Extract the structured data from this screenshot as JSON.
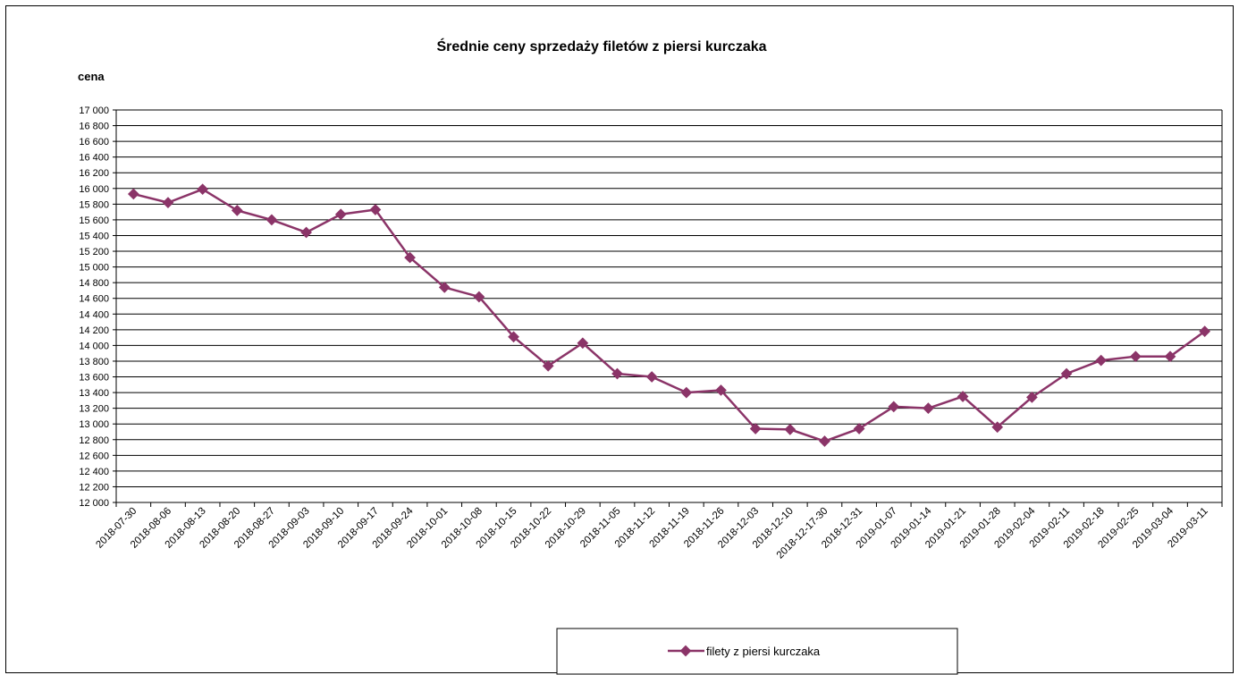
{
  "chart_data": {
    "type": "line",
    "title": "Średnie ceny sprzedaży filetów z piersi kurczaka",
    "ylabel": "cena",
    "xlabel": "",
    "ylim": [
      12000,
      17000
    ],
    "ytick_step": 200,
    "grid": true,
    "legend_position": "bottom",
    "line_color": "#8B3468",
    "categories": [
      "2018-07-30",
      "2018-08-06",
      "2018-08-13",
      "2018-08-20",
      "2018-08-27",
      "2018-09-03",
      "2018-09-10",
      "2018-09-17",
      "2018-09-24",
      "2018-10-01",
      "2018-10-08",
      "2018-10-15",
      "2018-10-22",
      "2018-10-29",
      "2018-11-05",
      "2018-11-12",
      "2018-11-19",
      "2018-11-26",
      "2018-12-03",
      "2018-12-10",
      "2018-12-17-30",
      "2018-12-31",
      "2019-01-07",
      "2019-01-14",
      "2019-01-21",
      "2019-01-28",
      "2019-02-04",
      "2019-02-11",
      "2019-02-18",
      "2019-02-25",
      "2019-03-04",
      "2019-03-11"
    ],
    "series": [
      {
        "name": "filety z piersi kurczaka",
        "values": [
          15930,
          15820,
          15990,
          15720,
          15600,
          15440,
          15670,
          15730,
          15120,
          14740,
          14620,
          14110,
          13740,
          14030,
          13640,
          13600,
          13400,
          13430,
          12940,
          12930,
          12780,
          12940,
          13220,
          13200,
          13350,
          12960,
          13340,
          13640,
          13810,
          13860,
          13860,
          14180
        ]
      }
    ]
  }
}
